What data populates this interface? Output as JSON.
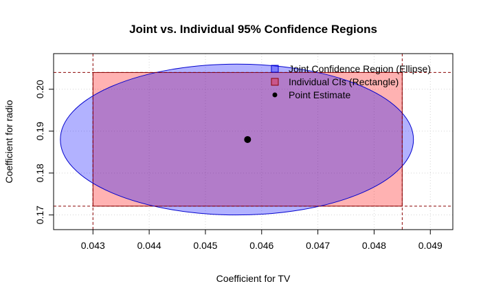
{
  "chart_data": {
    "type": "scatter",
    "title": "Joint vs. Individual 95% Confidence Regions",
    "xlabel": "Coefficient for TV",
    "ylabel": "Coefficient for radio",
    "xlim": [
      0.0423,
      0.0494
    ],
    "ylim": [
      0.1665,
      0.2085
    ],
    "x_ticks": [
      0.043,
      0.044,
      0.045,
      0.046,
      0.047,
      0.048,
      0.049
    ],
    "x_tick_labels": [
      "0.043",
      "0.044",
      "0.045",
      "0.046",
      "0.047",
      "0.048",
      "0.049"
    ],
    "y_ticks": [
      0.17,
      0.18,
      0.19,
      0.2
    ],
    "y_tick_labels": [
      "0.17",
      "0.18",
      "0.19",
      "0.20"
    ],
    "grid": true,
    "legend_position": "top-right",
    "point_estimate": {
      "x": 0.04575,
      "y": 0.188
    },
    "ellipse": {
      "center_x": 0.04575,
      "center_y": 0.188,
      "x_min": 0.04242,
      "x_max": 0.0487,
      "y_min": 0.17,
      "y_max": 0.206
    },
    "rectangle": {
      "x_min": 0.043,
      "x_max": 0.0485,
      "y_min": 0.1721,
      "y_max": 0.204
    },
    "legend": [
      {
        "label": "Joint Confidence Region (Ellipse)",
        "kind": "ellipse"
      },
      {
        "label": "Individual CIs (Rectangle)",
        "kind": "rectangle"
      },
      {
        "label": "Point Estimate",
        "kind": "point"
      }
    ],
    "colors": {
      "ellipse_fill": "#0000ff",
      "ellipse_stroke": "#0000cd",
      "rectangle_fill": "#ff0000",
      "rectangle_stroke": "#8b0000",
      "ci_lines": "#8b0000",
      "point": "#000000",
      "grid": "#d3d3d3"
    }
  }
}
